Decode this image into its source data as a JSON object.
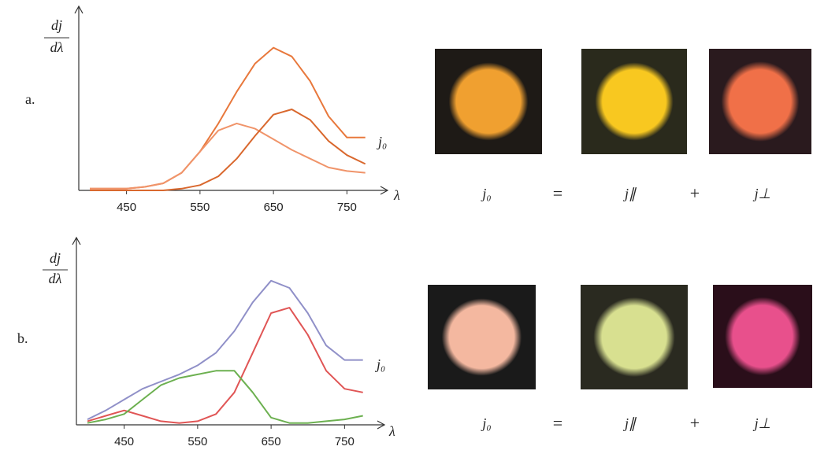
{
  "chart_data": [
    {
      "type": "line",
      "label": "a.",
      "y_label": [
        "dj",
        "dλ"
      ],
      "x_label": "λ",
      "x": [
        400,
        425,
        450,
        475,
        500,
        525,
        550,
        575,
        600,
        625,
        650,
        675,
        700,
        725,
        750,
        775
      ],
      "xlim": [
        385,
        800
      ],
      "xticks": [
        450,
        550,
        650,
        750
      ],
      "ylim": [
        0,
        100
      ],
      "series": [
        {
          "name": "j₀",
          "color": "#e8783c",
          "values": [
            1,
            1,
            1,
            2,
            4,
            10,
            22,
            38,
            56,
            72,
            81,
            76,
            62,
            42,
            30,
            30
          ]
        },
        {
          "color": "#f0946a",
          "values": [
            1,
            1,
            1,
            2,
            4,
            10,
            22,
            34,
            38,
            35,
            29,
            23,
            18,
            13,
            11,
            10
          ]
        },
        {
          "color": "#d9682e",
          "values": [
            0,
            0,
            0,
            0,
            0,
            1,
            3,
            8,
            18,
            31,
            43,
            46,
            40,
            28,
            20,
            15
          ]
        }
      ],
      "equation": [
        "j₀",
        "=",
        "j∥",
        "+",
        "j⊥"
      ]
    },
    {
      "type": "line",
      "label": "b.",
      "y_label": [
        "dj",
        "dλ"
      ],
      "x_label": "λ",
      "x": [
        400,
        425,
        450,
        475,
        500,
        525,
        550,
        575,
        600,
        625,
        650,
        675,
        700,
        725,
        750,
        775
      ],
      "xlim": [
        385,
        800
      ],
      "xticks": [
        450,
        550,
        650,
        750
      ],
      "ylim": [
        0,
        100
      ],
      "series": [
        {
          "name": "j₀",
          "color": "#9090c8",
          "values": [
            3,
            8,
            14,
            20,
            24,
            28,
            33,
            40,
            52,
            68,
            80,
            76,
            62,
            44,
            36,
            36
          ]
        },
        {
          "color": "#e05555",
          "values": [
            2,
            5,
            8,
            5,
            2,
            1,
            2,
            6,
            18,
            40,
            62,
            65,
            50,
            30,
            20,
            18
          ]
        },
        {
          "color": "#6cb050",
          "values": [
            1,
            3,
            6,
            14,
            22,
            26,
            28,
            30,
            30,
            18,
            4,
            1,
            1,
            2,
            3,
            5
          ]
        }
      ],
      "equation": [
        "j₀",
        "=",
        "j∥",
        "+",
        "j⊥"
      ]
    }
  ]
}
